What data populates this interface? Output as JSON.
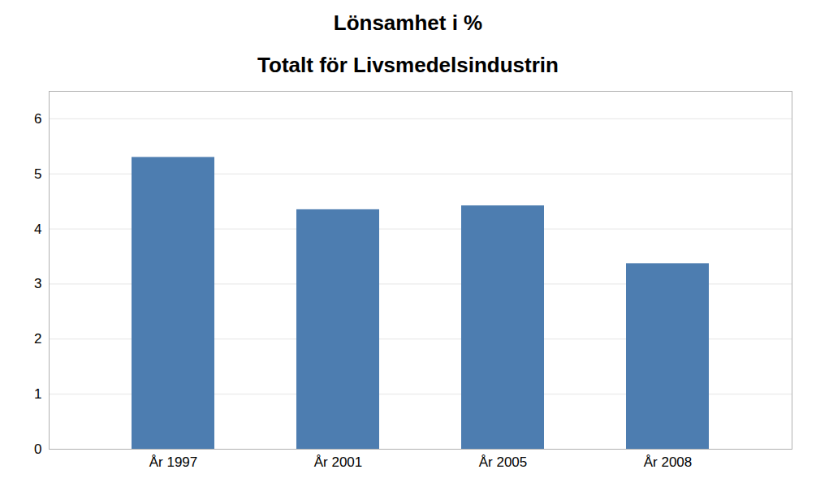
{
  "chart_data": {
    "type": "bar",
    "title": "Lönsamhet i %",
    "subtitle": "Totalt för Livsmedelsindustrin",
    "categories": [
      "År 1997",
      "År 2001",
      "År 2005",
      "År 2008"
    ],
    "values": [
      5.3,
      4.35,
      4.42,
      3.37
    ],
    "color": "#4d7db0",
    "ylim": [
      0,
      6.5
    ],
    "yticks": [
      0,
      1,
      2,
      3,
      4,
      5,
      6
    ],
    "grid": true
  }
}
